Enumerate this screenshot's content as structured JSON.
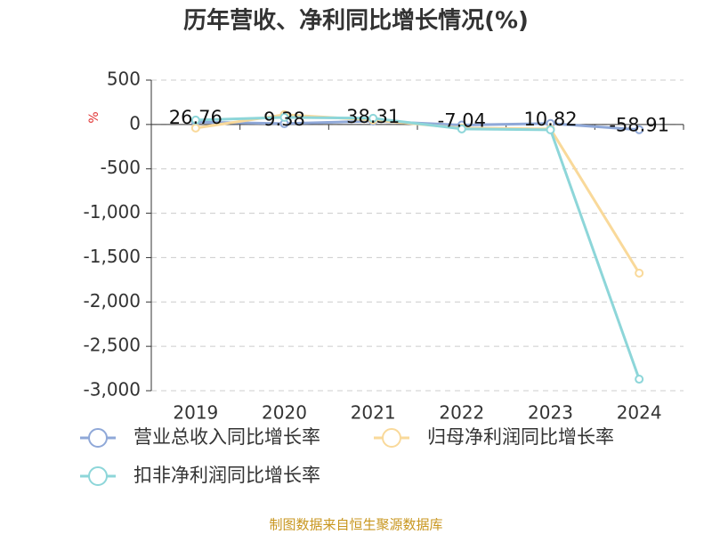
{
  "chart_data": {
    "type": "line",
    "title": "历年营收、净利同比增长情况(%)",
    "y_label": "%",
    "categories": [
      "2019",
      "2020",
      "2021",
      "2022",
      "2023",
      "2024"
    ],
    "series": [
      {
        "name": "营业总收入同比增长率",
        "color": "#8fa8d8",
        "values": [
          26.76,
          9.38,
          38.31,
          -7.04,
          10.82,
          -58.91
        ],
        "data_labels": true
      },
      {
        "name": "归母净利润同比增长率",
        "color": "#f9d99a",
        "values": [
          -40,
          110,
          50,
          -40,
          -50,
          -1675
        ]
      },
      {
        "name": "扣非净利润同比增长率",
        "color": "#8dd6d9",
        "values": [
          50,
          80,
          70,
          -50,
          -60,
          -2870
        ]
      }
    ],
    "ylim": [
      -3000,
      500
    ],
    "yticks": [
      500,
      0,
      -500,
      {
        "value": -1000,
        "label": "-1,000"
      },
      {
        "value": -1500,
        "label": "-1,500"
      },
      {
        "value": -2000,
        "label": "-2,000"
      },
      {
        "value": -2500,
        "label": "-2,500"
      },
      {
        "value": -3000,
        "label": "-3,000"
      }
    ],
    "grid": true,
    "source": "制图数据来自恒生聚源数据库"
  }
}
